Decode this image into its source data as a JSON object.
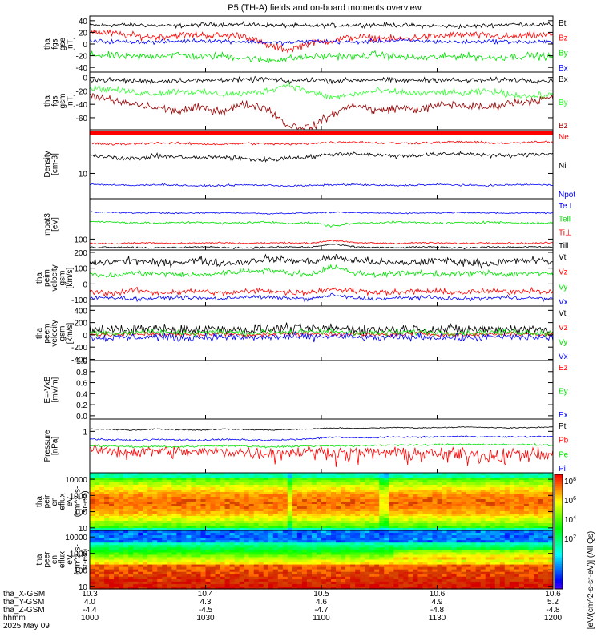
{
  "title": "P5 (TH-A) fields and on-board moments overview",
  "colors": {
    "black": "#000000",
    "red": "#ff0000",
    "green": "#00e000",
    "blue": "#0000ff",
    "darkred": "#990000",
    "lightgreen": "#33ff33"
  },
  "chart_data": [
    {
      "type": "line",
      "name": "fgs-gse",
      "ylabel": [
        "tha",
        "fgs",
        "gse",
        "[nT]"
      ],
      "yticks": [
        {
          "v": 40,
          "t": "40"
        },
        {
          "v": 20,
          "t": "20"
        },
        {
          "v": 0,
          "t": "0"
        },
        {
          "v": -20,
          "t": "-20"
        },
        {
          "v": -40,
          "t": "-40"
        }
      ],
      "ylim": [
        -48,
        48
      ],
      "series": [
        {
          "name": "Bt",
          "color": "black",
          "base": [
            32,
            33,
            31,
            34,
            33,
            31,
            32,
            33,
            31,
            30,
            34,
            33
          ],
          "noise": 3
        },
        {
          "name": "Bz",
          "color": "red",
          "base": [
            22,
            18,
            14,
            12,
            15,
            16,
            14,
            15,
            -2,
            -10,
            2,
            6,
            12,
            10,
            8,
            12,
            14,
            16,
            14,
            12,
            14,
            16
          ],
          "noise": 5
        },
        {
          "name": "By",
          "color": "green",
          "base": [
            -18,
            -20,
            -22,
            -20,
            -18,
            -22,
            -20,
            -24,
            -28,
            -25,
            -22,
            -20,
            -22,
            -18,
            -22,
            -24,
            -22,
            -20,
            -24,
            -22,
            -20,
            -22
          ],
          "noise": 5
        },
        {
          "name": "Bx",
          "color": "blue",
          "base": [
            5,
            4,
            4,
            3,
            5,
            6,
            5,
            4,
            3,
            2,
            5,
            4,
            3,
            5,
            6,
            5,
            4,
            3,
            5,
            4,
            3,
            4
          ],
          "noise": 3
        }
      ]
    },
    {
      "type": "line",
      "name": "fgs-gsm",
      "ylabel": [
        "tha",
        "fgs",
        "gsm",
        "[nT]"
      ],
      "yticks": [
        {
          "v": 0,
          "t": "0"
        },
        {
          "v": -20,
          "t": "-20"
        },
        {
          "v": -40,
          "t": "-40"
        },
        {
          "v": -60,
          "t": "-60"
        }
      ],
      "ylim": [
        -78,
        8
      ],
      "series": [
        {
          "name": "Bx",
          "color": "black",
          "base": [
            -3,
            -4,
            -5,
            -6,
            -4,
            -5,
            -3,
            -4,
            -2,
            -6,
            -3,
            -5,
            -4,
            -3,
            -5,
            -4,
            -3,
            -5,
            -4,
            -3,
            -4,
            -5
          ],
          "noise": 3
        },
        {
          "name": "By",
          "color": "lightgreen",
          "base": [
            -15,
            -18,
            -22,
            -24,
            -20,
            -22,
            -25,
            -24,
            -20,
            -10,
            -22,
            -30,
            -25,
            -20,
            -22,
            -24,
            -22,
            -24,
            -20,
            -25,
            -28,
            -26
          ],
          "noise": 4
        },
        {
          "name": "Bz",
          "color": "darkred",
          "base": [
            -25,
            -35,
            -40,
            -45,
            -50,
            -45,
            -50,
            -40,
            -45,
            -72,
            -75,
            -55,
            -40,
            -50,
            -45,
            -48,
            -40,
            -42,
            -45,
            -38,
            -35,
            -30
          ],
          "noise": 5
        }
      ]
    },
    {
      "type": "line",
      "name": "density",
      "log": true,
      "ylabel": [
        "Density",
        "[cm-3]"
      ],
      "yticks": [
        {
          "v": 10,
          "t": "10"
        }
      ],
      "ylim": [
        3,
        80
      ],
      "series": [
        {
          "name": "Ne",
          "color": "red",
          "base": [
            42,
            40,
            41,
            43,
            42,
            41,
            40,
            42,
            41,
            40,
            42,
            44,
            45,
            43,
            42,
            43,
            44,
            45,
            43,
            42,
            44,
            45
          ],
          "noise": 2
        },
        {
          "name": "Ni",
          "color": "black",
          "base": [
            24,
            22,
            20,
            23,
            22,
            21,
            22,
            20,
            19,
            21,
            22,
            25,
            26,
            24,
            23,
            24,
            25,
            26,
            24,
            23,
            25,
            26
          ],
          "noise": 2
        },
        {
          "name": "Npot",
          "color": "blue",
          "base": [
            6,
            5.8,
            5.6,
            5.9,
            5.7,
            5.5,
            5.6,
            5.8,
            5.7,
            5.5,
            5.6,
            5.8,
            5.9,
            5.7,
            5.6,
            5.8,
            5.9,
            5.7,
            5.6,
            5.8,
            5.9,
            5.7
          ],
          "noise": 0.2
        }
      ]
    },
    {
      "type": "line",
      "name": "temperature",
      "log": true,
      "ylabel": [
        "moat3",
        "[eV]"
      ],
      "yticks": [
        {
          "v": 100,
          "t": "100"
        }
      ],
      "ylim": [
        40,
        3000
      ],
      "series": [
        {
          "name": "Te⊥",
          "color": "blue",
          "base": [
            1000,
            950,
            900,
            920,
            880,
            900,
            920,
            900,
            850,
            880,
            900,
            950,
            920,
            900,
            880,
            900,
            920,
            950,
            900,
            880,
            920,
            900
          ],
          "noise": 40
        },
        {
          "name": "Tell",
          "color": "green",
          "base": [
            450,
            420,
            400,
            380,
            400,
            420,
            380,
            400,
            420,
            380,
            400,
            300,
            380,
            400,
            420,
            400,
            380,
            400,
            420,
            400,
            380,
            400
          ],
          "noise": 30
        },
        {
          "name": "Ti⊥",
          "color": "red",
          "base": [
            70,
            68,
            72,
            74,
            70,
            72,
            74,
            70,
            72,
            74,
            70,
            90,
            74,
            72,
            70,
            74,
            72,
            70,
            74,
            72,
            70,
            74
          ],
          "noise": 4
        },
        {
          "name": "Till",
          "color": "black",
          "base": [
            50,
            52,
            50,
            48,
            50,
            52,
            50,
            48,
            50,
            52,
            50,
            65,
            52,
            50,
            48,
            52,
            50,
            48,
            52,
            50,
            52,
            50
          ],
          "noise": 3
        }
      ]
    },
    {
      "type": "line",
      "name": "peim-velocity",
      "ylabel": [
        "tha",
        "peim",
        "velocity",
        "gsm",
        "[km/s]"
      ],
      "yticks": [
        {
          "v": 200,
          "t": "200"
        },
        {
          "v": 100,
          "t": "100"
        },
        {
          "v": 0,
          "t": "0"
        },
        {
          "v": -100,
          "t": "-100"
        }
      ],
      "ylim": [
        -140,
        215
      ],
      "series": [
        {
          "name": "Vt",
          "color": "black",
          "base": [
            130,
            140,
            150,
            130,
            140,
            150,
            130,
            140,
            160,
            150,
            140,
            170,
            150,
            140,
            130,
            140,
            150,
            140,
            130,
            140,
            150,
            140
          ],
          "noise": 20
        },
        {
          "name": "Vz",
          "color": "red",
          "base": [
            -50,
            -60,
            -40,
            -55,
            -50,
            -45,
            -60,
            -50,
            -40,
            -55,
            -50,
            -30,
            -45,
            -50,
            -55,
            -45,
            -50,
            -55,
            -45,
            -50,
            -40,
            -50
          ],
          "noise": 15
        },
        {
          "name": "Vy",
          "color": "green",
          "base": [
            60,
            50,
            70,
            65,
            60,
            55,
            70,
            80,
            90,
            70,
            60,
            110,
            70,
            60,
            65,
            70,
            60,
            65,
            70,
            60,
            70,
            60
          ],
          "noise": 15
        },
        {
          "name": "Vx",
          "color": "blue",
          "base": [
            -90,
            -85,
            -95,
            -90,
            -85,
            -90,
            -95,
            -80,
            -85,
            -90,
            -95,
            -70,
            -90,
            -95,
            -90,
            -85,
            -90,
            -95,
            -90,
            -85,
            -90,
            -95
          ],
          "noise": 10
        }
      ]
    },
    {
      "type": "line",
      "name": "peem-velocity",
      "ylabel": [
        "tha",
        "peem",
        "velocity",
        "gsm",
        "[km/s]"
      ],
      "yticks": [
        {
          "v": 400,
          "t": "400"
        },
        {
          "v": 200,
          "t": "200"
        },
        {
          "v": 0,
          "t": "0"
        },
        {
          "v": -200,
          "t": "-200"
        },
        {
          "v": -400,
          "t": "-400"
        }
      ],
      "ylim": [
        -420,
        470
      ],
      "series": [
        {
          "name": "Vt",
          "color": "black",
          "base": [
            90,
            80,
            90,
            100,
            80,
            90,
            100,
            80,
            90,
            100,
            90,
            110,
            90,
            80,
            90,
            100,
            90,
            80,
            90,
            100,
            90,
            80
          ],
          "noise": 70
        },
        {
          "name": "Vz",
          "color": "red",
          "base": [
            10,
            0,
            10,
            20,
            0,
            10,
            20,
            0,
            10,
            20,
            10,
            20,
            10,
            0,
            10,
            20,
            10,
            0,
            10,
            20,
            10,
            0
          ],
          "noise": 30
        },
        {
          "name": "Vy",
          "color": "green",
          "base": [
            40,
            30,
            40,
            50,
            30,
            40,
            50,
            30,
            40,
            50,
            40,
            60,
            40,
            30,
            40,
            50,
            40,
            30,
            40,
            50,
            40,
            30
          ],
          "noise": 40
        },
        {
          "name": "Vx",
          "color": "blue",
          "base": [
            -40,
            -50,
            -40,
            -30,
            -50,
            -40,
            -30,
            -50,
            -40,
            -30,
            -40,
            -20,
            -40,
            -50,
            -40,
            -30,
            -40,
            -50,
            -40,
            -30,
            -40,
            -50
          ],
          "noise": 50
        }
      ]
    },
    {
      "type": "line",
      "name": "efield",
      "ylabel": [
        "E=-VxB",
        "[mV/m]"
      ],
      "yticks": [
        {
          "v": 1.0,
          "t": "1.0"
        },
        {
          "v": 0.8,
          "t": "0.8"
        },
        {
          "v": 0.6,
          "t": "0.6"
        },
        {
          "v": 0.4,
          "t": "0.4"
        },
        {
          "v": 0.2,
          "t": "0.2"
        },
        {
          "v": 0.0,
          "t": "0.0"
        }
      ],
      "ylim": [
        -0.06,
        1.0
      ],
      "series": [
        {
          "name": "Ez",
          "color": "red"
        },
        {
          "name": "Ey",
          "color": "green"
        },
        {
          "name": "Ex",
          "color": "blue"
        }
      ]
    },
    {
      "type": "line",
      "name": "pressure",
      "log": true,
      "ylabel": [
        "Pressure",
        "[nPa]"
      ],
      "yticks": [
        {
          "v": 1,
          "t": "1"
        }
      ],
      "ylim": [
        0.04,
        2.6
      ],
      "series": [
        {
          "name": "Pt",
          "color": "black",
          "base": [
            1.2,
            1.15,
            1.1,
            1.2,
            1.15,
            1.1,
            1.2,
            1.15,
            1.1,
            1.15,
            1.2,
            1.3,
            1.25,
            1.3,
            1.35,
            1.3,
            1.35,
            1.4,
            1.35,
            1.3,
            1.35,
            1.4
          ],
          "noise": 0.04
        },
        {
          "name": "Pb",
          "color": "red",
          "base": [
            0.25,
            0.22,
            0.2,
            0.23,
            0.21,
            0.2,
            0.22,
            0.2,
            0.19,
            0.2,
            0.22,
            0.2,
            0.18,
            0.2,
            0.19,
            0.18,
            0.17,
            0.18,
            0.16,
            0.17,
            0.18,
            0.16
          ],
          "noise": 0.08
        },
        {
          "name": "Pe",
          "color": "green",
          "base": [
            0.33,
            0.32,
            0.3,
            0.31,
            0.3,
            0.32,
            0.33,
            0.32,
            0.3,
            0.31,
            0.32,
            0.33,
            0.32,
            0.34,
            0.35,
            0.34,
            0.36,
            0.37,
            0.36,
            0.35,
            0.36,
            0.34
          ],
          "noise": 0.02
        },
        {
          "name": "Pi",
          "color": "blue",
          "base": [
            0.55,
            0.52,
            0.5,
            0.53,
            0.52,
            0.5,
            0.53,
            0.52,
            0.5,
            0.52,
            0.55,
            0.65,
            0.6,
            0.62,
            0.65,
            0.64,
            0.66,
            0.68,
            0.66,
            0.65,
            0.66,
            0.68
          ],
          "noise": 0.03
        }
      ]
    },
    {
      "type": "heatmap",
      "name": "peir-eflux",
      "log": true,
      "ylabel": [
        "tha",
        "peir",
        "en",
        "eflux",
        "eV",
        "(cm^2-s-",
        "sr-eV)"
      ],
      "yticks": [
        {
          "v": 10000,
          "t": "10000"
        },
        {
          "v": 1000,
          "t": "1000"
        },
        {
          "v": 100,
          "t": "100"
        },
        {
          "v": 10,
          "t": "10"
        }
      ],
      "ylim": [
        7,
        25000
      ]
    },
    {
      "type": "heatmap",
      "name": "peer-eflux",
      "log": true,
      "ylabel": [
        "tha",
        "peer",
        "en",
        "eflux",
        "eV",
        "(cm^2-s-",
        "sr-eV)"
      ],
      "yticks": [
        {
          "v": 10000,
          "t": "10000"
        },
        {
          "v": 1000,
          "t": "1000"
        },
        {
          "v": 100,
          "t": "100"
        },
        {
          "v": 10,
          "t": "10"
        }
      ],
      "ylim": [
        7,
        25000
      ]
    }
  ],
  "colorbar": {
    "tick_labels": [
      "10^8",
      "10^6",
      "10^4",
      "10^2"
    ],
    "label": "[eV/(cm^2-s-sr-eV)] (All Qs)"
  },
  "x_axis": {
    "rows": [
      {
        "label": "tha_X-GSM",
        "values": [
          "10.3",
          "10.4",
          "10.5",
          "10.6",
          "10.6"
        ]
      },
      {
        "label": "tha_Y-GSM",
        "values": [
          "4.0",
          "4.3",
          "4.6",
          "4.9",
          "5.2"
        ]
      },
      {
        "label": "tha_Z-GSM",
        "values": [
          "-4.4",
          "-4.5",
          "-4.7",
          "-4.8",
          "-4.8"
        ]
      },
      {
        "label": "hhmm",
        "values": [
          "1000",
          "1030",
          "1100",
          "1130",
          "1200"
        ]
      }
    ],
    "date": "2025 May 09"
  }
}
